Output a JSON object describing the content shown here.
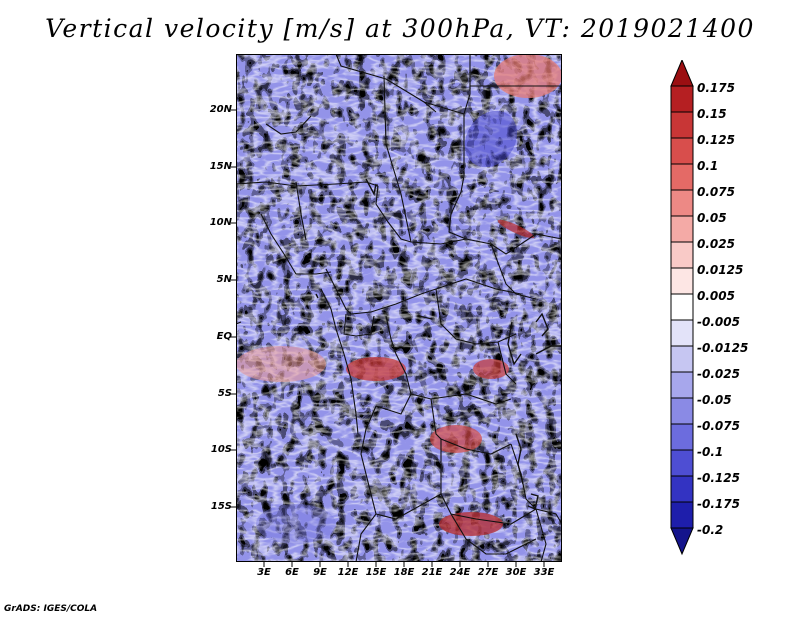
{
  "title": "Vertical velocity [m/s] at 300hPa, VT: 2019021400",
  "footer": "GrADS: IGES/COLA",
  "map": {
    "lat_labels": [
      "20N",
      "15N",
      "10N",
      "5N",
      "EQ",
      "5S",
      "10S",
      "15S"
    ],
    "lon_labels": [
      "3E",
      "6E",
      "9E",
      "12E",
      "15E",
      "18E",
      "21E",
      "24E",
      "27E",
      "30E",
      "33E"
    ]
  },
  "colorbar": {
    "labels": [
      "0.175",
      "0.15",
      "0.125",
      "0.1",
      "0.075",
      "0.05",
      "0.025",
      "0.0125",
      "0.005",
      "-0.005",
      "-0.0125",
      "-0.025",
      "-0.05",
      "-0.075",
      "-0.1",
      "-0.125",
      "-0.175",
      "-0.2"
    ],
    "colors": [
      "#9b0f12",
      "#b51f22",
      "#c83636",
      "#d84e4c",
      "#e46a66",
      "#ed8985",
      "#f4aaa6",
      "#f9cac7",
      "#fde6e4",
      "#ffffff",
      "#e3e3f9",
      "#c6c6f2",
      "#a7a7ec",
      "#8a8ae5",
      "#6c6cde",
      "#4e4ed3",
      "#3333c2",
      "#1e1eab",
      "#14148c"
    ]
  }
}
